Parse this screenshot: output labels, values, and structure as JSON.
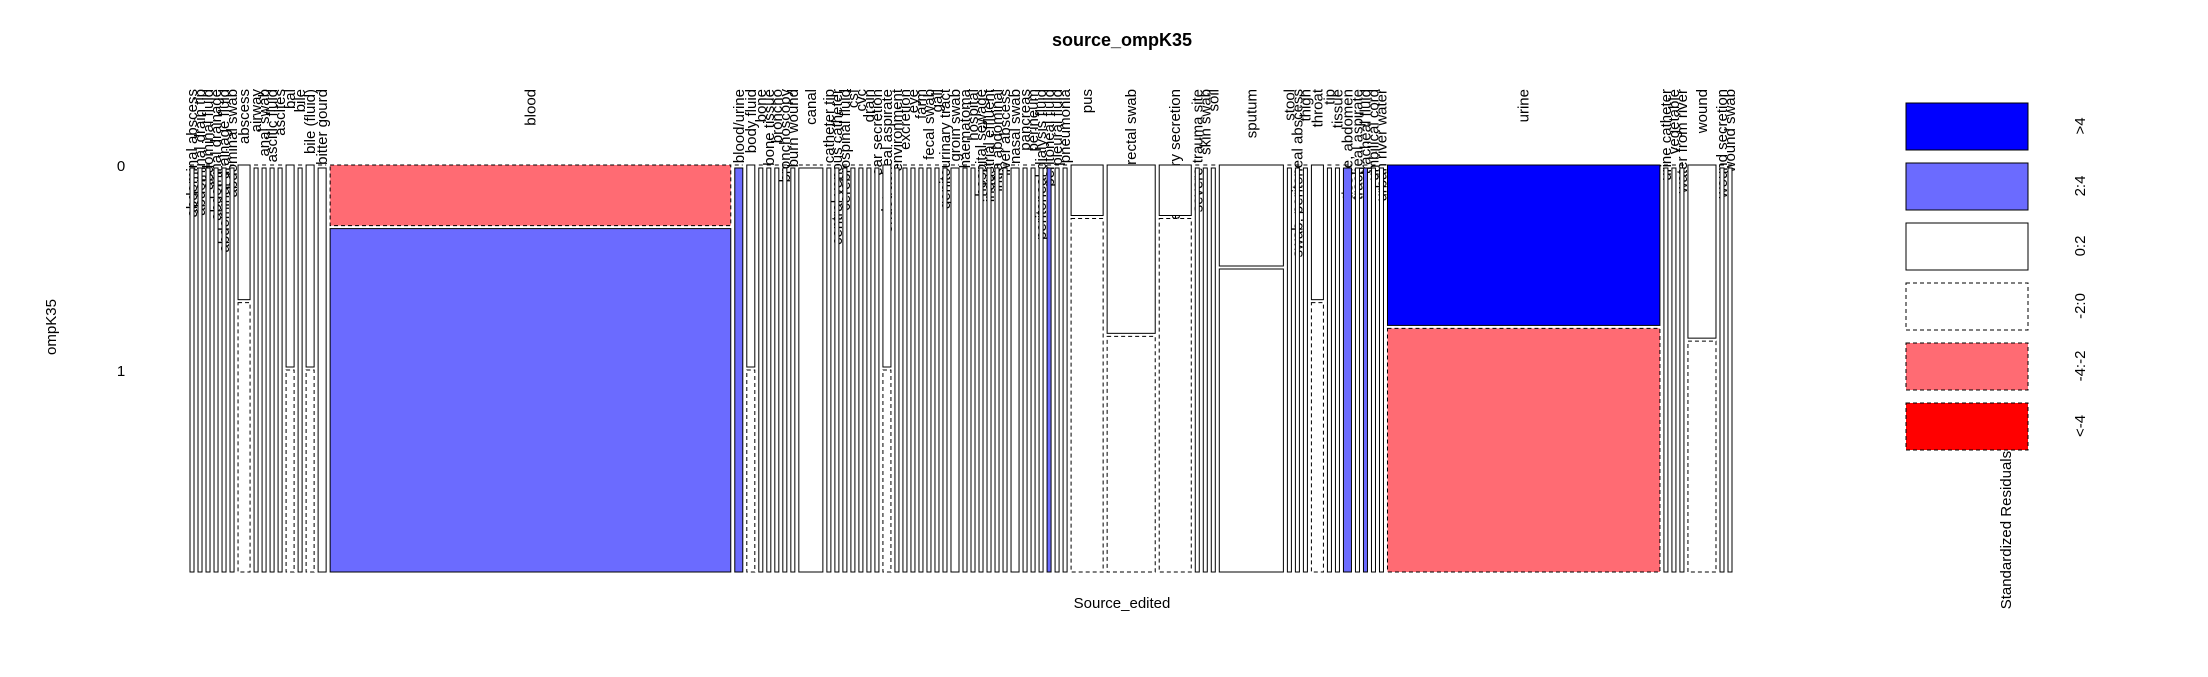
{
  "chart_data": {
    "type": "mosaic",
    "title": "source_ompK35",
    "x_label": "Source_edited",
    "y_label": "ompK35",
    "categories": [
      "abdominal abscess",
      "abdominal drain tip",
      "abdominal fluid",
      "abdominal drainage",
      "abdominal drainage fluid",
      "abdominal swab",
      "abscess",
      "airway",
      "anal swab",
      "ascitic fluid",
      "ascites",
      "bal",
      "bile",
      "bile (fluid)",
      "bitter gourd",
      "blood",
      "blood/urine",
      "body fluid",
      "bone",
      "bone tissue",
      "broncho",
      "bronchoscopy",
      "burn wound",
      "canal",
      "catheter tip",
      "central venous catheter",
      "cerebrospinal fluid",
      "csf",
      "cvc",
      "drain",
      "ear secretion",
      "endotracheal aspirate",
      "environment",
      "excretion",
      "eye",
      "farm",
      "fecal swab",
      "gall",
      "genitourinary tract",
      "groin swab",
      "haematoma",
      "hospital",
      "hospital sewage",
      "industrial effluent",
      "intra abdominal",
      "liver abscess",
      "nasal swab",
      "pancreas",
      "perineum",
      "peritoneal dialysis fluid",
      "peritoneal fluid",
      "pleural fluid",
      "pneumonia",
      "pus",
      "rectal swab",
      "respiratory secretion",
      "severe trauma site",
      "skin swab",
      "soil",
      "sputum",
      "stool",
      "swab, peritoneal abscess",
      "thigh",
      "throat",
      "tip",
      "tissue",
      "tissue, abdomen",
      "tracheal aspirate",
      "tracheal fluid",
      "umbilical cord",
      "urban river water",
      "urine",
      "urine catheter",
      "vegetable",
      "water from river",
      "wound",
      "wound secretion",
      "wound swab"
    ],
    "series": [
      {
        "name": "0",
        "values": [
          0,
          0,
          0,
          0,
          0,
          0,
          1,
          0,
          0,
          0,
          0,
          1,
          0,
          1,
          0,
          15,
          0,
          1,
          0,
          0,
          0,
          0,
          0,
          0,
          0,
          0,
          0,
          0,
          0,
          0,
          0,
          1,
          0,
          0,
          0,
          0,
          0,
          0,
          0,
          0,
          0,
          0,
          0,
          0,
          0,
          0,
          0,
          0,
          0,
          0,
          0,
          0,
          0,
          1,
          5,
          1,
          0,
          0,
          0,
          4,
          0,
          0,
          0,
          1,
          0,
          0,
          0,
          0,
          0,
          0,
          0,
          27,
          0,
          0,
          0,
          3,
          0,
          0
        ],
        "shading": [
          3,
          3,
          3,
          3,
          3,
          3,
          2,
          3,
          3,
          3,
          3,
          2,
          3,
          2,
          3,
          4,
          3,
          2,
          3,
          3,
          3,
          3,
          3,
          3,
          3,
          3,
          3,
          3,
          3,
          3,
          3,
          2,
          3,
          3,
          3,
          3,
          3,
          3,
          3,
          3,
          3,
          3,
          3,
          3,
          3,
          3,
          3,
          3,
          3,
          3,
          3,
          3,
          3,
          2,
          2,
          2,
          3,
          3,
          3,
          2,
          3,
          3,
          3,
          2,
          3,
          3,
          3,
          3,
          3,
          3,
          3,
          0,
          3,
          3,
          3,
          2,
          3,
          3
        ]
      },
      {
        "name": "1",
        "values": [
          1,
          1,
          1,
          1,
          1,
          1,
          2,
          1,
          1,
          1,
          1,
          1,
          1,
          1,
          2,
          85,
          2,
          1,
          1,
          1,
          1,
          1,
          1,
          6,
          1,
          1,
          1,
          1,
          1,
          1,
          1,
          1,
          1,
          1,
          1,
          1,
          1,
          1,
          1,
          2,
          1,
          1,
          1,
          1,
          1,
          1,
          2,
          1,
          1,
          1,
          1,
          1,
          1,
          7,
          7,
          7,
          1,
          1,
          1,
          12,
          1,
          1,
          1,
          2,
          1,
          1,
          2,
          1,
          1,
          1,
          1,
          41,
          1,
          1,
          1,
          4,
          1,
          1
        ],
        "shading": [
          2,
          2,
          2,
          2,
          2,
          2,
          3,
          2,
          2,
          2,
          2,
          3,
          2,
          3,
          2,
          1,
          1,
          3,
          2,
          2,
          2,
          2,
          2,
          2,
          2,
          2,
          2,
          2,
          2,
          2,
          2,
          3,
          2,
          2,
          2,
          2,
          2,
          2,
          2,
          2,
          2,
          2,
          2,
          2,
          2,
          2,
          2,
          2,
          2,
          2,
          1,
          2,
          2,
          3,
          3,
          3,
          2,
          2,
          2,
          2,
          2,
          2,
          2,
          3,
          2,
          2,
          1,
          2,
          1,
          2,
          2,
          4,
          2,
          2,
          2,
          3,
          2,
          2
        ]
      }
    ],
    "legend": {
      "title": "Standardized Residuals:",
      "labels": [
        ">4",
        "2:4",
        "0:2",
        "-2:0",
        "-4:-2",
        "<-4"
      ],
      "colors": [
        "#0000ff",
        "#6b6bff",
        "#ffffff",
        "#ffffff",
        "#ff6b73",
        "#ff0000"
      ],
      "dashed": [
        false,
        false,
        false,
        true,
        true,
        true
      ]
    }
  }
}
